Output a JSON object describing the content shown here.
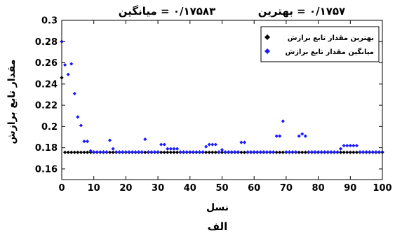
{
  "title_left": "۰/۱۷۵۸۳ = میانگین",
  "title_right": "۰/۱۷۵۷ = بهترین",
  "xlabel": "نسل",
  "ylabel": "مقدار تابع برازش",
  "figure_label": "الف",
  "chart_data": {
    "type": "scatter",
    "xlim": [
      0,
      100
    ],
    "ylim": [
      0.15,
      0.3
    ],
    "xticks": [
      "0",
      "10",
      "20",
      "30",
      "40",
      "50",
      "60",
      "70",
      "80",
      "90",
      "100"
    ],
    "yticks": [
      "0.16",
      "0.18",
      "0.2",
      "0.22",
      "0.24",
      "0.26",
      "0.28",
      "0.3"
    ],
    "legend_placement": "top-right",
    "series": [
      {
        "name": "بهترین مقدار تابع برازش",
        "color": "#000000",
        "marker": "diamond",
        "points": [
          [
            0,
            0.246
          ],
          [
            1,
            0.1757
          ],
          [
            2,
            0.1757
          ],
          [
            3,
            0.1757
          ],
          [
            4,
            0.1757
          ],
          [
            5,
            0.1757
          ],
          [
            6,
            0.1757
          ],
          [
            7,
            0.1757
          ],
          [
            8,
            0.1757
          ],
          [
            9,
            0.1757
          ],
          [
            10,
            0.1757
          ],
          [
            11,
            0.1757
          ],
          [
            12,
            0.1757
          ],
          [
            13,
            0.1757
          ],
          [
            14,
            0.1757
          ],
          [
            15,
            0.1757
          ],
          [
            16,
            0.1757
          ],
          [
            17,
            0.1757
          ],
          [
            18,
            0.1757
          ],
          [
            19,
            0.1757
          ],
          [
            20,
            0.1757
          ],
          [
            21,
            0.1757
          ],
          [
            22,
            0.1757
          ],
          [
            23,
            0.1757
          ],
          [
            24,
            0.1757
          ],
          [
            25,
            0.1757
          ],
          [
            26,
            0.1757
          ],
          [
            27,
            0.1757
          ],
          [
            28,
            0.1757
          ],
          [
            29,
            0.1757
          ],
          [
            30,
            0.1757
          ],
          [
            31,
            0.1757
          ],
          [
            32,
            0.1757
          ],
          [
            33,
            0.1757
          ],
          [
            34,
            0.1757
          ],
          [
            35,
            0.1757
          ],
          [
            36,
            0.1757
          ],
          [
            37,
            0.1757
          ],
          [
            38,
            0.1757
          ],
          [
            39,
            0.1757
          ],
          [
            40,
            0.1757
          ],
          [
            41,
            0.1757
          ],
          [
            42,
            0.1757
          ],
          [
            43,
            0.1757
          ],
          [
            44,
            0.1757
          ],
          [
            45,
            0.1757
          ],
          [
            46,
            0.1757
          ],
          [
            47,
            0.1757
          ],
          [
            48,
            0.1757
          ],
          [
            49,
            0.1757
          ],
          [
            50,
            0.1757
          ],
          [
            51,
            0.1757
          ],
          [
            52,
            0.1757
          ],
          [
            53,
            0.1757
          ],
          [
            54,
            0.1757
          ],
          [
            55,
            0.1757
          ],
          [
            56,
            0.1757
          ],
          [
            57,
            0.1757
          ],
          [
            58,
            0.1757
          ],
          [
            59,
            0.1757
          ],
          [
            60,
            0.1757
          ],
          [
            61,
            0.1757
          ],
          [
            62,
            0.1757
          ],
          [
            63,
            0.1757
          ],
          [
            64,
            0.1757
          ],
          [
            65,
            0.1757
          ],
          [
            66,
            0.1757
          ],
          [
            67,
            0.1757
          ],
          [
            68,
            0.1757
          ],
          [
            69,
            0.1757
          ],
          [
            70,
            0.1757
          ],
          [
            71,
            0.1757
          ],
          [
            72,
            0.1757
          ],
          [
            73,
            0.1757
          ],
          [
            74,
            0.1757
          ],
          [
            75,
            0.1757
          ],
          [
            76,
            0.1757
          ],
          [
            77,
            0.1757
          ],
          [
            78,
            0.1757
          ],
          [
            79,
            0.1757
          ],
          [
            80,
            0.1757
          ],
          [
            81,
            0.1757
          ],
          [
            82,
            0.1757
          ],
          [
            83,
            0.1757
          ],
          [
            84,
            0.1757
          ],
          [
            85,
            0.1757
          ],
          [
            86,
            0.1757
          ],
          [
            87,
            0.1757
          ],
          [
            88,
            0.1757
          ],
          [
            89,
            0.1757
          ],
          [
            90,
            0.1757
          ],
          [
            91,
            0.1757
          ],
          [
            92,
            0.1757
          ],
          [
            93,
            0.1757
          ],
          [
            94,
            0.1757
          ],
          [
            95,
            0.1757
          ],
          [
            96,
            0.1757
          ],
          [
            97,
            0.1757
          ],
          [
            98,
            0.1757
          ],
          [
            99,
            0.1757
          ],
          [
            100,
            0.1757
          ]
        ]
      },
      {
        "name": "میانگین مقدار تابع برازش",
        "color": "#1a1aff",
        "marker": "diamond",
        "points": [
          [
            0,
            0.28
          ],
          [
            1,
            0.258
          ],
          [
            2,
            0.249
          ],
          [
            3,
            0.259
          ],
          [
            4,
            0.231
          ],
          [
            5,
            0.209
          ],
          [
            6,
            0.201
          ],
          [
            7,
            0.186
          ],
          [
            8,
            0.186
          ],
          [
            9,
            0.177
          ],
          [
            10,
            0.176
          ],
          [
            11,
            0.176
          ],
          [
            12,
            0.176
          ],
          [
            13,
            0.176
          ],
          [
            14,
            0.176
          ],
          [
            15,
            0.187
          ],
          [
            16,
            0.179
          ],
          [
            17,
            0.176
          ],
          [
            18,
            0.176
          ],
          [
            19,
            0.176
          ],
          [
            20,
            0.176
          ],
          [
            21,
            0.176
          ],
          [
            22,
            0.176
          ],
          [
            23,
            0.176
          ],
          [
            24,
            0.176
          ],
          [
            25,
            0.176
          ],
          [
            26,
            0.188
          ],
          [
            27,
            0.176
          ],
          [
            28,
            0.176
          ],
          [
            29,
            0.176
          ],
          [
            30,
            0.176
          ],
          [
            31,
            0.183
          ],
          [
            32,
            0.183
          ],
          [
            33,
            0.179
          ],
          [
            34,
            0.179
          ],
          [
            35,
            0.179
          ],
          [
            36,
            0.179
          ],
          [
            37,
            0.176
          ],
          [
            38,
            0.176
          ],
          [
            39,
            0.176
          ],
          [
            40,
            0.176
          ],
          [
            41,
            0.176
          ],
          [
            42,
            0.176
          ],
          [
            43,
            0.176
          ],
          [
            44,
            0.176
          ],
          [
            45,
            0.181
          ],
          [
            46,
            0.183
          ],
          [
            47,
            0.183
          ],
          [
            48,
            0.183
          ],
          [
            49,
            0.176
          ],
          [
            50,
            0.178
          ],
          [
            51,
            0.176
          ],
          [
            52,
            0.176
          ],
          [
            53,
            0.176
          ],
          [
            54,
            0.176
          ],
          [
            55,
            0.176
          ],
          [
            56,
            0.185
          ],
          [
            57,
            0.185
          ],
          [
            58,
            0.176
          ],
          [
            59,
            0.176
          ],
          [
            60,
            0.176
          ],
          [
            61,
            0.176
          ],
          [
            62,
            0.176
          ],
          [
            63,
            0.176
          ],
          [
            64,
            0.176
          ],
          [
            65,
            0.176
          ],
          [
            66,
            0.176
          ],
          [
            67,
            0.191
          ],
          [
            68,
            0.191
          ],
          [
            69,
            0.205
          ],
          [
            70,
            0.176
          ],
          [
            71,
            0.176
          ],
          [
            72,
            0.176
          ],
          [
            73,
            0.176
          ],
          [
            74,
            0.191
          ],
          [
            75,
            0.193
          ],
          [
            76,
            0.191
          ],
          [
            77,
            0.176
          ],
          [
            78,
            0.176
          ],
          [
            79,
            0.176
          ],
          [
            80,
            0.176
          ],
          [
            81,
            0.176
          ],
          [
            82,
            0.176
          ],
          [
            83,
            0.176
          ],
          [
            84,
            0.176
          ],
          [
            85,
            0.176
          ],
          [
            86,
            0.176
          ],
          [
            87,
            0.179
          ],
          [
            88,
            0.182
          ],
          [
            89,
            0.182
          ],
          [
            90,
            0.182
          ],
          [
            91,
            0.182
          ],
          [
            92,
            0.182
          ],
          [
            93,
            0.176
          ],
          [
            94,
            0.176
          ],
          [
            95,
            0.176
          ],
          [
            96,
            0.176
          ],
          [
            97,
            0.176
          ],
          [
            98,
            0.176
          ],
          [
            99,
            0.176
          ],
          [
            100,
            0.176
          ]
        ]
      }
    ]
  }
}
